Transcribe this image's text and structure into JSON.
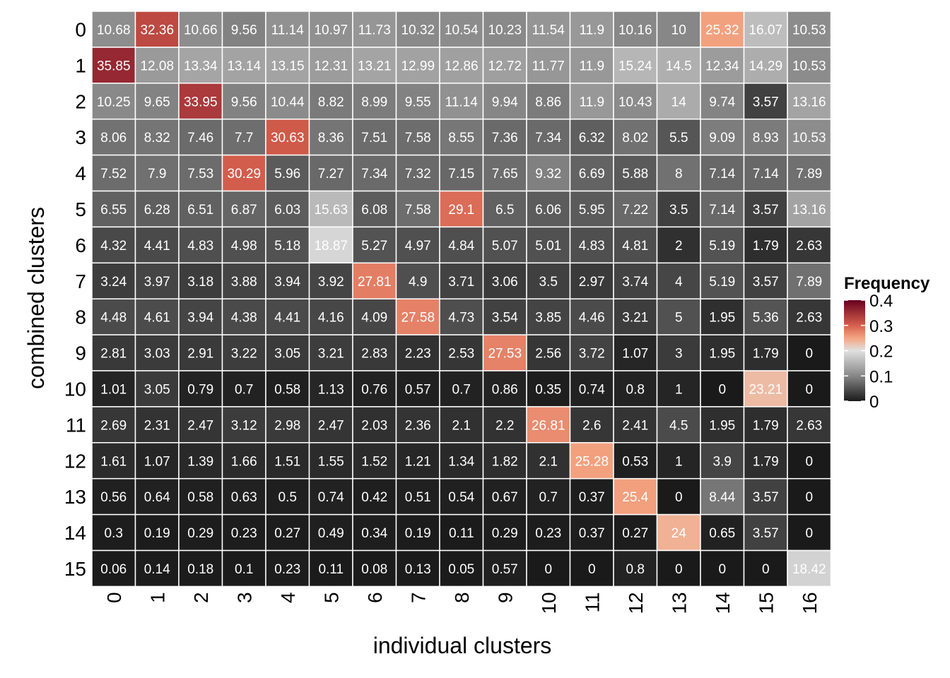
{
  "chart_data": {
    "type": "heatmap",
    "xlabel": "individual clusters",
    "ylabel": "combined clusters",
    "x_categories": [
      "0",
      "1",
      "2",
      "3",
      "4",
      "5",
      "6",
      "7",
      "8",
      "9",
      "10",
      "11",
      "12",
      "13",
      "14",
      "15",
      "16"
    ],
    "y_categories": [
      "0",
      "1",
      "2",
      "3",
      "4",
      "5",
      "6",
      "7",
      "8",
      "9",
      "10",
      "11",
      "12",
      "13",
      "14",
      "15"
    ],
    "values": [
      [
        "10.68",
        "32.36",
        "10.66",
        "9.56",
        "11.14",
        "10.97",
        "11.73",
        "10.32",
        "10.54",
        "10.23",
        "11.54",
        "11.9",
        "10.16",
        "10",
        "25.32",
        "16.07",
        "10.53"
      ],
      [
        "35.85",
        "12.08",
        "13.34",
        "13.14",
        "13.15",
        "12.31",
        "13.21",
        "12.99",
        "12.86",
        "12.72",
        "11.77",
        "11.9",
        "15.24",
        "14.5",
        "12.34",
        "14.29",
        "10.53"
      ],
      [
        "10.25",
        "9.65",
        "33.95",
        "9.56",
        "10.44",
        "8.82",
        "8.99",
        "9.55",
        "11.14",
        "9.94",
        "8.86",
        "11.9",
        "10.43",
        "14",
        "9.74",
        "3.57",
        "13.16"
      ],
      [
        "8.06",
        "8.32",
        "7.46",
        "7.7",
        "30.63",
        "8.36",
        "7.51",
        "7.58",
        "8.55",
        "7.36",
        "7.34",
        "6.32",
        "8.02",
        "5.5",
        "9.09",
        "8.93",
        "10.53"
      ],
      [
        "7.52",
        "7.9",
        "7.53",
        "30.29",
        "5.96",
        "7.27",
        "7.34",
        "7.32",
        "7.15",
        "7.65",
        "9.32",
        "6.69",
        "5.88",
        "8",
        "7.14",
        "7.14",
        "7.89"
      ],
      [
        "6.55",
        "6.28",
        "6.51",
        "6.87",
        "6.03",
        "15.63",
        "6.08",
        "7.58",
        "29.1",
        "6.5",
        "6.06",
        "5.95",
        "7.22",
        "3.5",
        "7.14",
        "3.57",
        "13.16"
      ],
      [
        "4.32",
        "4.41",
        "4.83",
        "4.98",
        "5.18",
        "18.87",
        "5.27",
        "4.97",
        "4.84",
        "5.07",
        "5.01",
        "4.83",
        "4.81",
        "2",
        "5.19",
        "1.79",
        "2.63"
      ],
      [
        "3.24",
        "3.97",
        "3.18",
        "3.88",
        "3.94",
        "3.92",
        "27.81",
        "4.9",
        "3.71",
        "3.06",
        "3.5",
        "2.97",
        "3.74",
        "4",
        "5.19",
        "3.57",
        "7.89"
      ],
      [
        "4.48",
        "4.61",
        "3.94",
        "4.38",
        "4.41",
        "4.16",
        "4.09",
        "27.58",
        "4.73",
        "3.54",
        "3.85",
        "4.46",
        "3.21",
        "5",
        "1.95",
        "5.36",
        "2.63"
      ],
      [
        "2.81",
        "3.03",
        "2.91",
        "3.22",
        "3.05",
        "3.21",
        "2.83",
        "2.23",
        "2.53",
        "27.53",
        "2.56",
        "3.72",
        "1.07",
        "3",
        "1.95",
        "1.79",
        "0"
      ],
      [
        "1.01",
        "3.05",
        "0.79",
        "0.7",
        "0.58",
        "1.13",
        "0.76",
        "0.57",
        "0.7",
        "0.86",
        "0.35",
        "0.74",
        "0.8",
        "1",
        "0",
        "23.21",
        "0"
      ],
      [
        "2.69",
        "2.31",
        "2.47",
        "3.12",
        "2.98",
        "2.47",
        "2.03",
        "2.36",
        "2.1",
        "2.2",
        "26.81",
        "2.6",
        "2.41",
        "4.5",
        "1.95",
        "1.79",
        "2.63"
      ],
      [
        "1.61",
        "1.07",
        "1.39",
        "1.66",
        "1.51",
        "1.55",
        "1.52",
        "1.21",
        "1.34",
        "1.82",
        "2.1",
        "25.28",
        "0.53",
        "1",
        "3.9",
        "1.79",
        "0"
      ],
      [
        "0.56",
        "0.64",
        "0.58",
        "0.63",
        "0.5",
        "0.74",
        "0.42",
        "0.51",
        "0.54",
        "0.67",
        "0.7",
        "0.37",
        "25.4",
        "0",
        "8.44",
        "3.57",
        "0"
      ],
      [
        "0.3",
        "0.19",
        "0.29",
        "0.23",
        "0.27",
        "0.49",
        "0.34",
        "0.19",
        "0.11",
        "0.29",
        "0.23",
        "0.37",
        "0.27",
        "24",
        "0.65",
        "3.57",
        "0"
      ],
      [
        "0.06",
        "0.14",
        "0.18",
        "0.1",
        "0.23",
        "0.11",
        "0.08",
        "0.13",
        "0.05",
        "0.57",
        "0",
        "0",
        "0.8",
        "0",
        "0",
        "0",
        "18.42"
      ]
    ],
    "legend": {
      "title": "Frequency",
      "ticks": [
        "0",
        "0.1",
        "0.2",
        "0.3",
        "0.4"
      ],
      "tick_values": [
        0,
        0.1,
        0.2,
        0.3,
        0.4
      ],
      "range": [
        0,
        0.4
      ],
      "placement": "right"
    },
    "colors": {
      "low": "#1a1a1a",
      "mid_low": "#878787",
      "mid": "#e0e0e0",
      "mid_high": "#f4a582",
      "high_mid": "#d6604d",
      "high": "#67001f",
      "cell_border": "#ffffff",
      "cell_text": "#ffffff"
    }
  }
}
